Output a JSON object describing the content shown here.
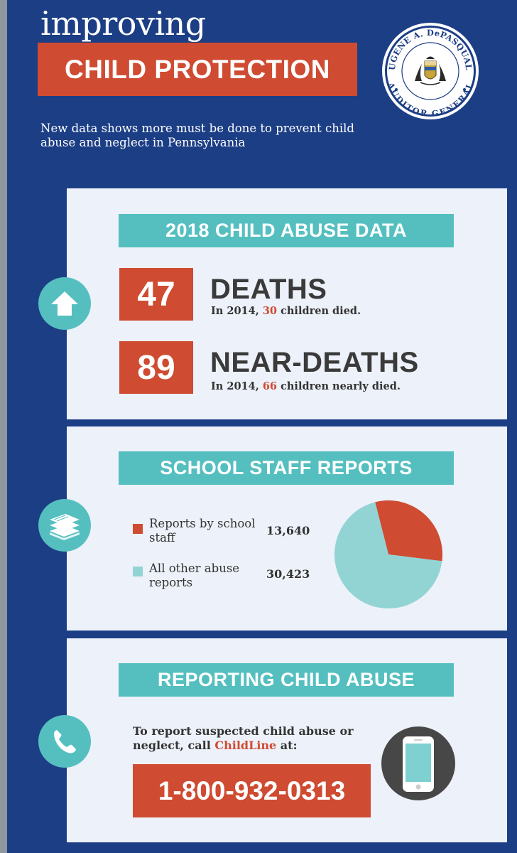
{
  "header": {
    "title_small": "improving",
    "title_main": "CHILD PROTECTION",
    "seal_top": "EUGENE A. DePASQUALE",
    "seal_bottom": "AUDITOR GENERAL",
    "intro": "New data shows more must be done to prevent child abuse and neglect in Pennsylvania"
  },
  "section1": {
    "banner": "2018 CHILD ABUSE DATA",
    "stats": [
      {
        "number": "47",
        "label": "DEATHS",
        "sub_prefix": "In 2014, ",
        "sub_value": "30",
        "sub_suffix": " children died."
      },
      {
        "number": "89",
        "label": "NEAR-DEATHS",
        "sub_prefix": "In 2014, ",
        "sub_value": "66",
        "sub_suffix": " children nearly died."
      }
    ]
  },
  "section2": {
    "banner": "SCHOOL STAFF REPORTS",
    "legend": [
      {
        "label": "Reports by school staff",
        "value": "13,640",
        "color": "#cf4b31"
      },
      {
        "label": "All other abuse reports",
        "value": "30,423",
        "color": "#92d4d4"
      }
    ]
  },
  "chart_data": {
    "type": "pie",
    "categories": [
      "Reports by school staff",
      "All other abuse reports"
    ],
    "values": [
      13640,
      30423
    ],
    "colors": [
      "#cf4b31",
      "#92d4d4"
    ],
    "title": "SCHOOL STAFF REPORTS"
  },
  "section3": {
    "banner": "REPORTING CHILD ABUSE",
    "text_prefix": "To report suspected child abuse or neglect, call ",
    "text_highlight": "ChildLine",
    "text_suffix": " at:",
    "phone": "1-800-932-0313"
  },
  "colors": {
    "navy": "#1c3e85",
    "teal": "#55bfc0",
    "red": "#cf4b31",
    "panel": "#edf1f9",
    "pie_light": "#92d4d4"
  },
  "icons": [
    "up-arrow-icon",
    "papers-stack-icon",
    "phone-handset-icon",
    "smartphone-icon"
  ]
}
